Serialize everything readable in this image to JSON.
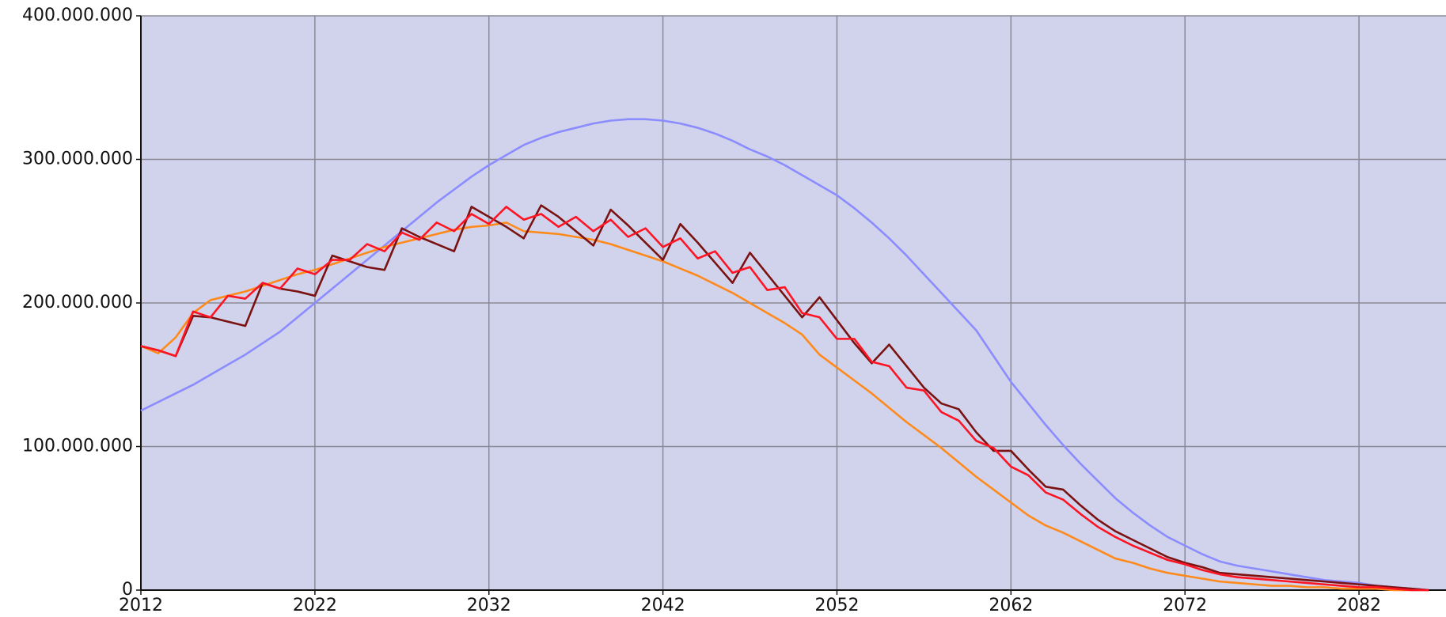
{
  "chart_data": {
    "type": "line",
    "x": [
      2012,
      2013,
      2014,
      2015,
      2016,
      2017,
      2018,
      2019,
      2020,
      2021,
      2022,
      2023,
      2024,
      2025,
      2026,
      2027,
      2028,
      2029,
      2030,
      2031,
      2032,
      2033,
      2034,
      2035,
      2036,
      2037,
      2038,
      2039,
      2040,
      2041,
      2042,
      2043,
      2044,
      2045,
      2046,
      2047,
      2048,
      2049,
      2050,
      2051,
      2052,
      2053,
      2054,
      2055,
      2056,
      2057,
      2058,
      2059,
      2060,
      2061,
      2062,
      2063,
      2064,
      2065,
      2066,
      2067,
      2068,
      2069,
      2070,
      2071,
      2072,
      2073,
      2074,
      2075,
      2076,
      2077,
      2078,
      2079,
      2080,
      2081,
      2082,
      2083,
      2084,
      2085,
      2086
    ],
    "series": [
      {
        "color": "#8a8cff",
        "values": [
          125000000.0,
          131000000.0,
          137000000.0,
          143000000.0,
          150000000.0,
          157000000.0,
          164000000.0,
          172000000.0,
          180000000.0,
          190000000.0,
          200000000.0,
          210000000.0,
          220000000.0,
          230000000.0,
          240000000.0,
          250000000.0,
          260000000.0,
          270000000.0,
          279000000.0,
          288000000.0,
          296000000.0,
          303000000.0,
          310000000.0,
          315000000.0,
          319000000.0,
          322000000.0,
          325000000.0,
          327000000.0,
          328000000.0,
          328000000.0,
          327000000.0,
          325000000.0,
          322000000.0,
          318000000.0,
          313000000.0,
          307000000.0,
          302000000.0,
          296000000.0,
          289000000.0,
          282000000.0,
          275000000.0,
          266000000.0,
          256000000.0,
          245000000.0,
          233000000.0,
          220000000.0,
          207000000.0,
          194000000.0,
          181000000.0,
          163000000.0,
          145000000.0,
          130000000.0,
          115000000.0,
          101000000.0,
          88000000.0,
          76000000.0,
          64000000.0,
          54000000.0,
          45000000.0,
          37000000.0,
          31000000.0,
          25000000.0,
          20000000.0,
          17000000.0,
          15000000.0,
          13000000.0,
          11000000.0,
          9000000.0,
          7000000.0,
          6000000.0,
          5000000.0,
          3000000.0,
          2000000.0,
          1000000.0,
          0
        ]
      },
      {
        "color": "#ff8a1c",
        "values": [
          170000000.0,
          165000000.0,
          176000000.0,
          193000000.0,
          202000000.0,
          205000000.0,
          208000000.0,
          212000000.0,
          216000000.0,
          220000000.0,
          223000000.0,
          227000000.0,
          231000000.0,
          235000000.0,
          239000000.0,
          242000000.0,
          245000000.0,
          248000000.0,
          251000000.0,
          253000000.0,
          254000000.0,
          256000000.0,
          250000000.0,
          249000000.0,
          248000000.0,
          246000000.0,
          244000000.0,
          241000000.0,
          237000000.0,
          233000000.0,
          229000000.0,
          224000000.0,
          219000000.0,
          213000000.0,
          207000000.0,
          200000000.0,
          193000000.0,
          186000000.0,
          178000000.0,
          164000000.0,
          155000000.0,
          146000000.0,
          137000000.0,
          127000000.0,
          117000000.0,
          108000000.0,
          99000000.0,
          89000000.0,
          79000000.0,
          70000000.0,
          61000000.0,
          52000000.0,
          45000000.0,
          40000000.0,
          34000000.0,
          28000000.0,
          22000000.0,
          19000000.0,
          15000000.0,
          12000000.0,
          10000000.0,
          8000000.0,
          6000000.0,
          5000000.0,
          4000000.0,
          3000000.0,
          3000000.0,
          2000000.0,
          2000000.0,
          1000000.0,
          1000000.0,
          1000000.0,
          0,
          0,
          0
        ]
      },
      {
        "color": "#7a1212",
        "values": [
          170000000.0,
          167000000.0,
          163000000.0,
          191000000.0,
          190000000.0,
          187000000.0,
          184000000.0,
          214000000.0,
          210000000.0,
          208000000.0,
          205000000.0,
          233000000.0,
          229000000.0,
          225000000.0,
          223000000.0,
          252000000.0,
          246000000.0,
          241000000.0,
          236000000.0,
          267000000.0,
          260000000.0,
          253000000.0,
          245000000.0,
          268000000.0,
          260000000.0,
          250000000.0,
          240000000.0,
          265000000.0,
          254000000.0,
          242000000.0,
          230000000.0,
          255000000.0,
          242000000.0,
          228000000.0,
          214000000.0,
          235000000.0,
          220000000.0,
          205000000.0,
          190000000.0,
          204000000.0,
          188000000.0,
          172000000.0,
          158000000.0,
          171000000.0,
          156000000.0,
          141000000.0,
          130000000.0,
          126000000.0,
          110000000.0,
          97000000.0,
          97000000.0,
          84000000.0,
          72000000.0,
          70000000.0,
          59000000.0,
          49000000.0,
          41000000.0,
          35000000.0,
          29000000.0,
          23000000.0,
          19000000.0,
          16000000.0,
          12000000.0,
          11000000.0,
          10000000.0,
          9000000.0,
          8000000.0,
          7000000.0,
          6000000.0,
          5000000.0,
          4000000.0,
          3000000.0,
          2000000.0,
          1000000.0,
          0
        ]
      },
      {
        "color": "#ff1424",
        "values": [
          170000000.0,
          167000000.0,
          163000000.0,
          194000000.0,
          190000000.0,
          205000000.0,
          203000000.0,
          214000000.0,
          210000000.0,
          224000000.0,
          220000000.0,
          230000000.0,
          230000000.0,
          241000000.0,
          236000000.0,
          249000000.0,
          244000000.0,
          256000000.0,
          250000000.0,
          262000000.0,
          255000000.0,
          267000000.0,
          258000000.0,
          262000000.0,
          253000000.0,
          260000000.0,
          250000000.0,
          258000000.0,
          246000000.0,
          252000000.0,
          239000000.0,
          245000000.0,
          231000000.0,
          236000000.0,
          221000000.0,
          225000000.0,
          209000000.0,
          211000000.0,
          193000000.0,
          190000000.0,
          175000000.0,
          175000000.0,
          159000000.0,
          156000000.0,
          141000000.0,
          139000000.0,
          124000000.0,
          118000000.0,
          104000000.0,
          99000000.0,
          86000000.0,
          80000000.0,
          68000000.0,
          63000000.0,
          53000000.0,
          44000000.0,
          37000000.0,
          31000000.0,
          26000000.0,
          21000000.0,
          18000000.0,
          14000000.0,
          11000000.0,
          9000000.0,
          8000000.0,
          7000000.0,
          6000000.0,
          5000000.0,
          4000000.0,
          3000000.0,
          2000000.0,
          2000000.0,
          1000000.0,
          0,
          0
        ]
      }
    ],
    "xlim": [
      2012,
      2087
    ],
    "xticks": [
      2012,
      2022,
      2032,
      2042,
      2052,
      2062,
      2072,
      2082
    ],
    "ylim": [
      0,
      400000000
    ],
    "yticks": [
      0,
      {
        "value": 100000000,
        "label": "100.000.000"
      },
      {
        "value": 200000000,
        "label": "200.000.000"
      },
      {
        "value": 300000000,
        "label": "300.000.000"
      },
      {
        "value": 400000000,
        "label": "400.000.000"
      }
    ],
    "grid": true,
    "plot_background": "#d1d3ec"
  }
}
